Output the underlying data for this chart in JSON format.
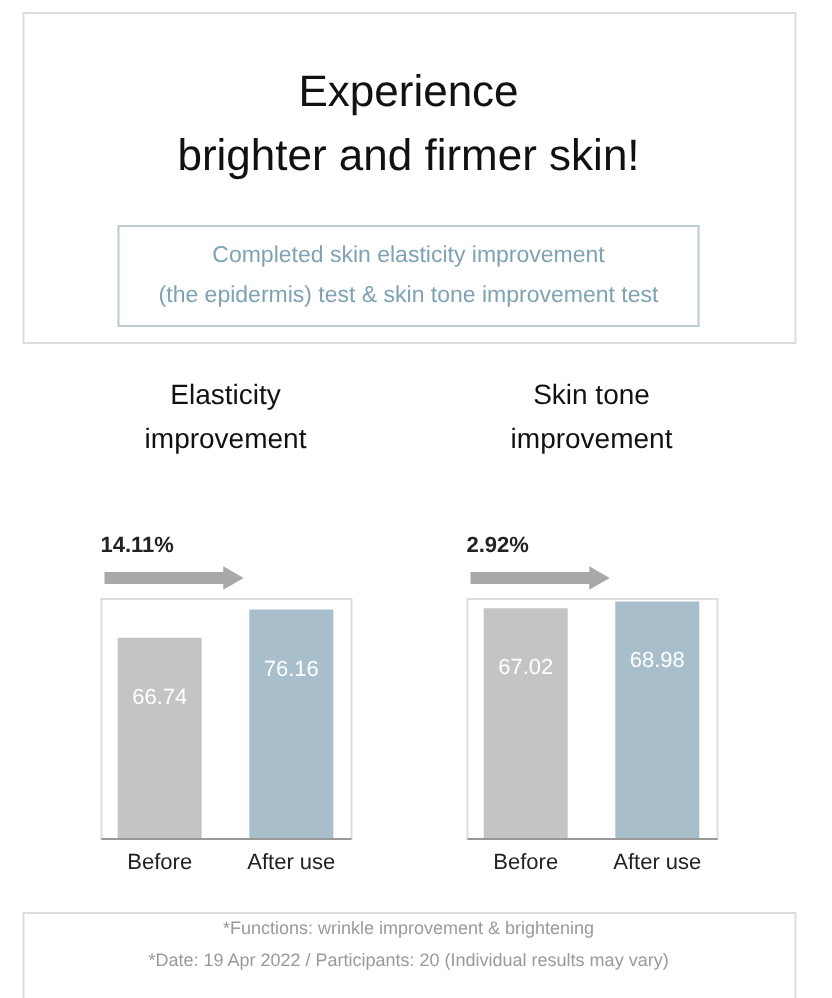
{
  "chart_data": [
    {
      "type": "bar",
      "title": "Elasticity improvement",
      "categories": [
        "Before",
        "After use"
      ],
      "values": [
        66.74,
        76.16
      ],
      "colors": [
        "#c4c4c4",
        "#a8bfcb"
      ],
      "data_labels": true,
      "annotations": [
        "14.11%",
        "Experience",
        "brighter and firmer skin!",
        "Completed skin elasticity improvement",
        "(the epidermis) test & skin tone improvement test",
        "*Functions: wrinkle improvement & brightening",
        "*Date: 19 Apr 2022 / Participants: 20 (Individual results may vary)"
      ]
    },
    {
      "type": "bar",
      "title": "Skin tone improvement",
      "categories": [
        "Before",
        "After use"
      ],
      "values": [
        67.02,
        68.98
      ],
      "colors": [
        "#c4c4c4",
        "#a8bfcb"
      ],
      "data_labels": true,
      "annotations": [
        "2.92%"
      ]
    }
  ]
}
